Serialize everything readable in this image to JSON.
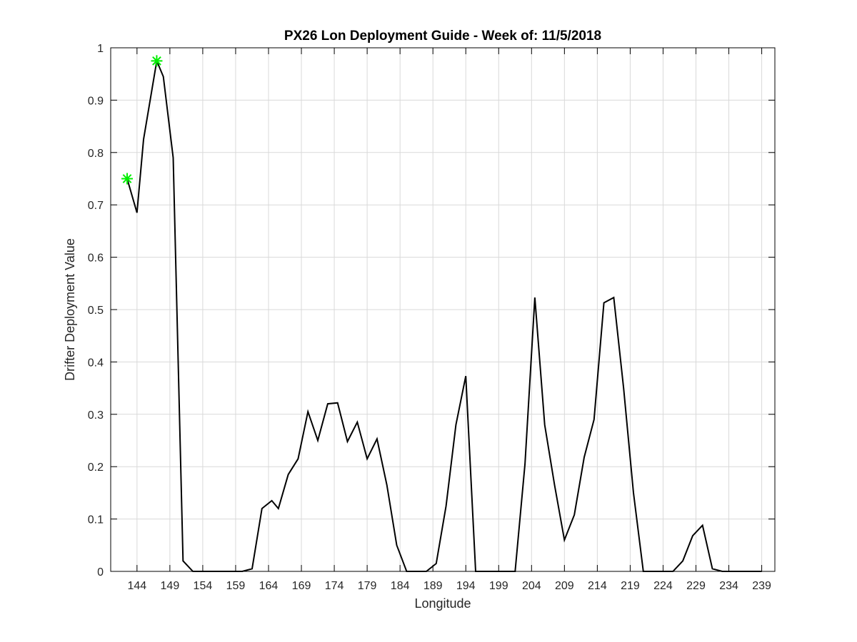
{
  "chart_data": {
    "type": "line",
    "title": "PX26 Lon Deployment Guide - Week of: 11/5/2018",
    "xlabel": "Longitude",
    "ylabel": "Drifter Deployment Value",
    "xlim": [
      140,
      241
    ],
    "ylim": [
      0,
      1
    ],
    "x_ticks": [
      "144",
      "149",
      "154",
      "159",
      "164",
      "169",
      "174",
      "179",
      "184",
      "189",
      "194",
      "199",
      "204",
      "209",
      "214",
      "219",
      "224",
      "229",
      "234",
      "239"
    ],
    "y_ticks": [
      "0",
      "0.1",
      "0.2",
      "0.3",
      "0.4",
      "0.5",
      "0.6",
      "0.7",
      "0.8",
      "0.9",
      "1"
    ],
    "grid": true,
    "series": [
      {
        "color": "#000000",
        "x": [
          142.5,
          144,
          145,
          147,
          148,
          149.5,
          151,
          152.5,
          154,
          156,
          158,
          160,
          161.5,
          163,
          164.5,
          165.5,
          167,
          168.5,
          170,
          171.5,
          173,
          174.5,
          176,
          177.5,
          179,
          180.5,
          182,
          183.5,
          185,
          186.5,
          188,
          189.5,
          191,
          192.5,
          194,
          195.5,
          197,
          198.5,
          200,
          201.5,
          203,
          204.5,
          206,
          207.5,
          209,
          210.5,
          212,
          213.5,
          215,
          216.5,
          218,
          219.5,
          221,
          222.5,
          224,
          225.5,
          227,
          228.5,
          230,
          231.5,
          233,
          234.5,
          236,
          237.5,
          239
        ],
        "y": [
          0.75,
          0.685,
          0.825,
          0.975,
          0.945,
          0.79,
          0.02,
          0,
          0,
          0,
          0,
          0,
          0.005,
          0.12,
          0.135,
          0.12,
          0.185,
          0.215,
          0.305,
          0.25,
          0.32,
          0.322,
          0.248,
          0.285,
          0.215,
          0.253,
          0.165,
          0.05,
          0,
          0,
          0,
          0.015,
          0.125,
          0.28,
          0.373,
          0,
          0,
          0,
          0,
          0,
          0.205,
          0.523,
          0.28,
          0.165,
          0.06,
          0.108,
          0.218,
          0.29,
          0.513,
          0.523,
          0.35,
          0.15,
          0,
          0,
          0,
          0,
          0.02,
          0.068,
          0.088,
          0.005,
          0,
          0,
          0,
          0,
          0
        ]
      }
    ],
    "markers": {
      "color": "#00ee00",
      "symbol": "asterisk",
      "x": [
        142.5,
        147
      ],
      "y": [
        0.75,
        0.975
      ]
    }
  }
}
